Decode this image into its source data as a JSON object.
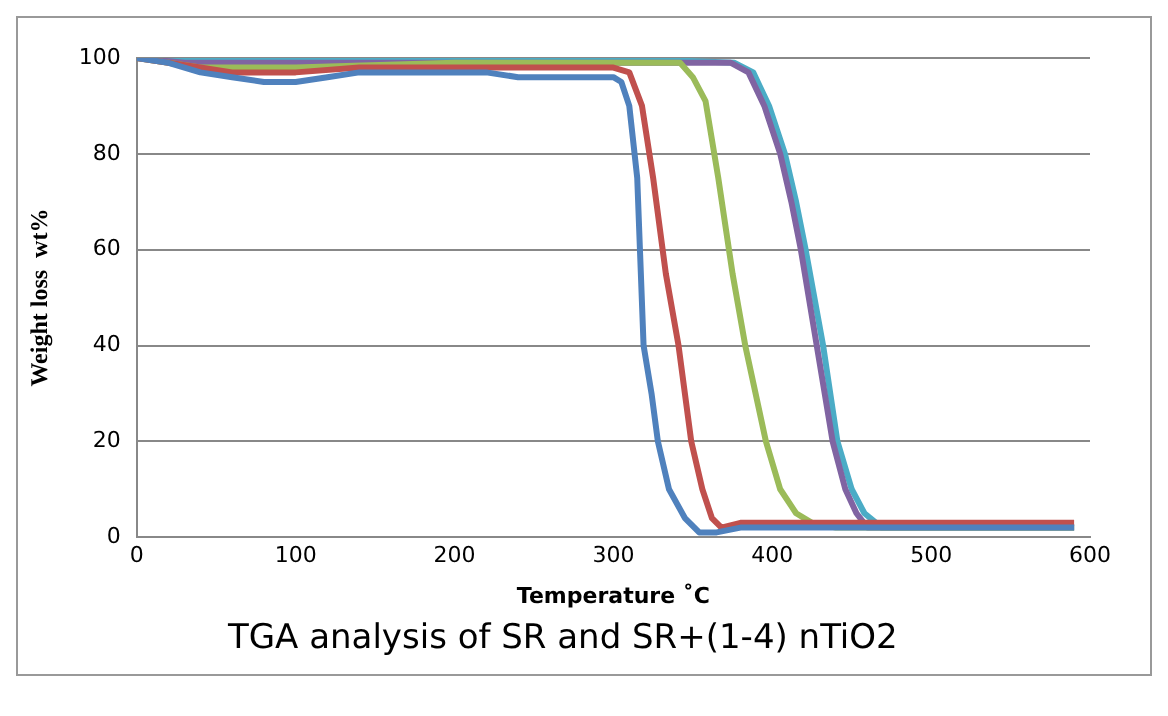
{
  "chart_data": {
    "type": "line",
    "xlabel": "Temperature ˚C",
    "ylabel": "Weight loss  wt%",
    "annotations": [
      "TGA analysis of SR and SR+(1-4) nTiO2"
    ],
    "xlim": [
      0,
      600
    ],
    "xticks": [
      0,
      100,
      200,
      300,
      400,
      500,
      600
    ],
    "ylim": [
      0,
      100
    ],
    "yticks": [
      0,
      20,
      40,
      60,
      80,
      100
    ],
    "grid": "y",
    "legend": false,
    "marker": "none",
    "series": [
      {
        "color": "#4f81bd",
        "x": [
          0,
          20,
          40,
          60,
          80,
          100,
          120,
          140,
          160,
          200,
          220,
          240,
          300,
          305,
          310,
          315,
          319,
          324,
          328,
          335,
          345,
          354,
          365,
          380,
          590
        ],
        "values": [
          100,
          99,
          97,
          96,
          95,
          95,
          96,
          97,
          97,
          97,
          97,
          96,
          96,
          95,
          90,
          75,
          40,
          30,
          20,
          10,
          4,
          1,
          1,
          2,
          2
        ]
      },
      {
        "color": "#c0504d",
        "x": [
          0,
          20,
          40,
          60,
          100,
          140,
          200,
          300,
          310,
          318,
          325,
          333,
          341,
          349,
          356,
          362,
          368,
          380,
          590
        ],
        "values": [
          100,
          99,
          98,
          97,
          97,
          98,
          98,
          98,
          97,
          90,
          75,
          55,
          40,
          20,
          10,
          4,
          2,
          3,
          3
        ]
      },
      {
        "color": "#9bbb59",
        "x": [
          0,
          20,
          40,
          100,
          200,
          300,
          342,
          350,
          358,
          366,
          375,
          383,
          396,
          405,
          415,
          425,
          440,
          590
        ],
        "values": [
          100,
          99,
          98,
          98,
          99,
          99,
          99,
          96,
          91,
          75,
          55,
          40,
          20,
          10,
          5,
          3,
          2,
          2
        ]
      },
      {
        "color": "#8064a2",
        "x": [
          0,
          30,
          100,
          200,
          300,
          374,
          385,
          395,
          405,
          412,
          418,
          428,
          438,
          446,
          453,
          460,
          590
        ],
        "values": [
          100,
          99,
          99,
          99,
          99,
          99,
          97,
          90,
          80,
          70,
          60,
          40,
          20,
          10,
          5,
          2,
          2
        ]
      },
      {
        "color": "#4bacc6",
        "x": [
          0,
          30,
          100,
          200,
          300,
          376,
          388,
          398,
          408,
          415,
          421,
          432,
          441,
          450,
          458,
          469,
          590
        ],
        "values": [
          100,
          100,
          100,
          100,
          100,
          99,
          97,
          90,
          80,
          70,
          60,
          40,
          20,
          10,
          5,
          2,
          2
        ]
      }
    ]
  }
}
